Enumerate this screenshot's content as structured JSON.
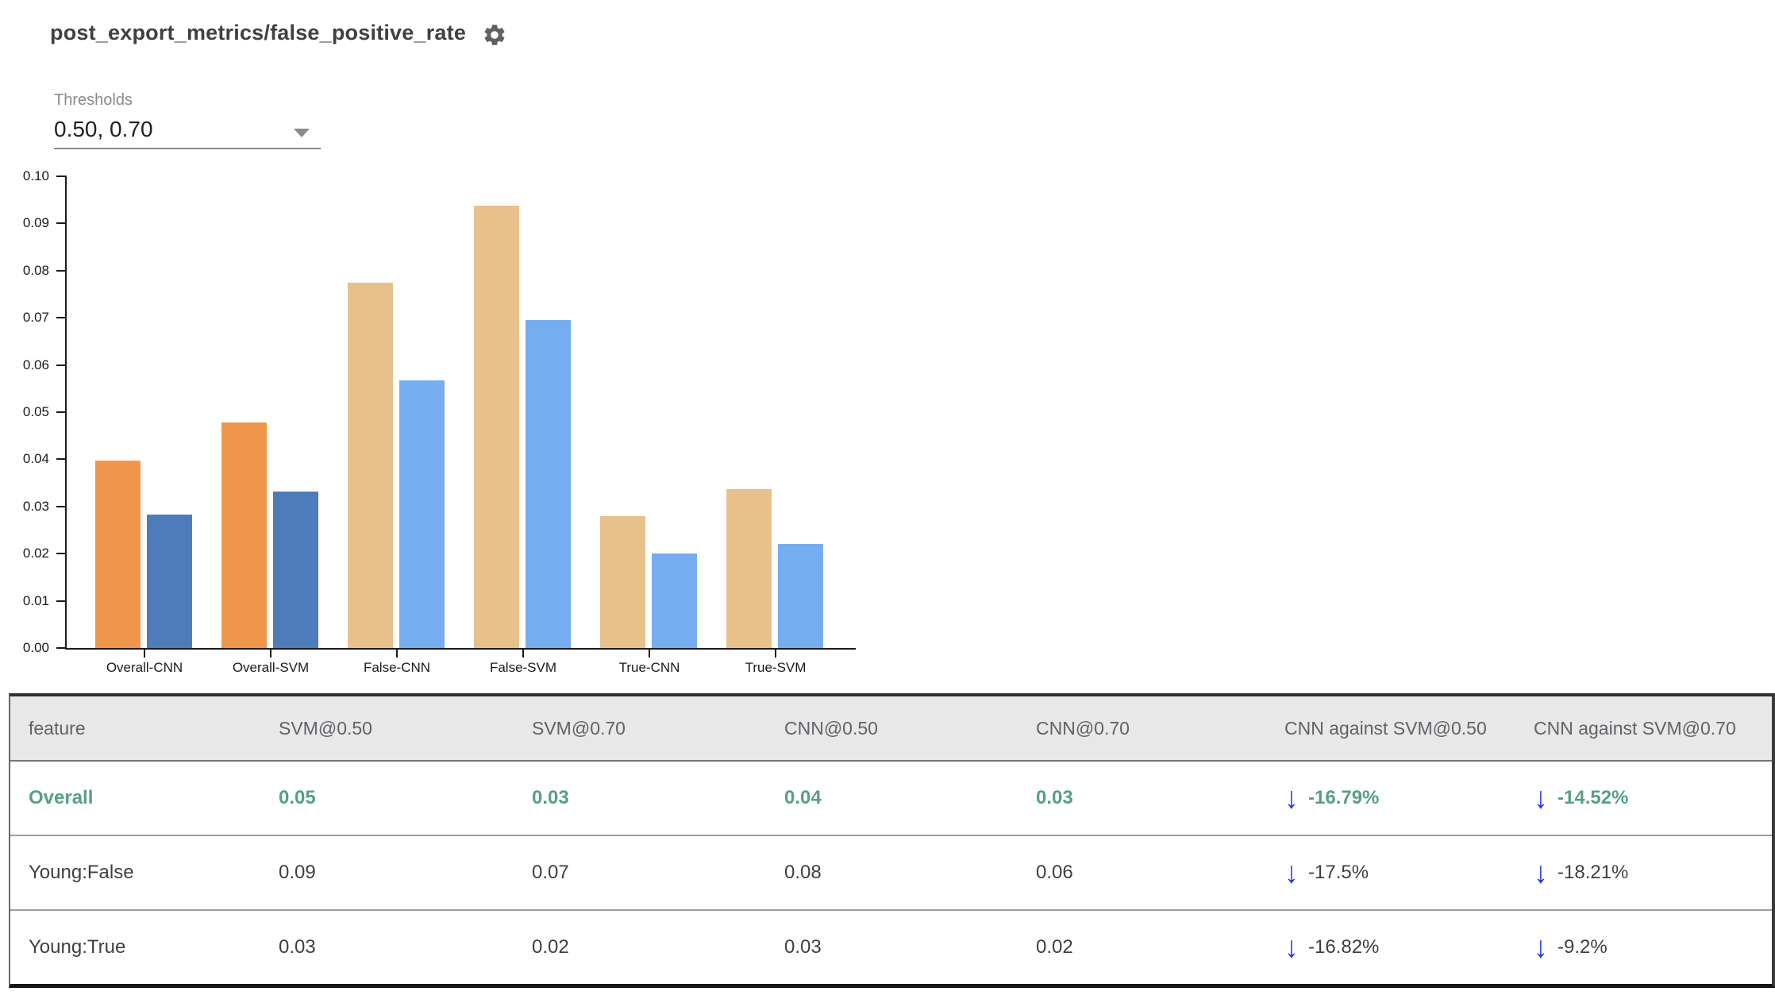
{
  "header": {
    "title": "post_export_metrics/false_positive_rate"
  },
  "icons": {
    "arrow_down": "↓",
    "gear": "settings-gear"
  },
  "thresholds": {
    "label": "Thresholds",
    "value": "0.50, 0.70"
  },
  "chart_data": {
    "type": "bar",
    "categories": [
      "Overall-CNN",
      "Overall-SVM",
      "False-CNN",
      "False-SVM",
      "True-CNN",
      "True-SVM"
    ],
    "series": [
      {
        "name": "threshold 0.50",
        "values": [
          0.0398,
          0.0478,
          0.0775,
          0.0937,
          0.028,
          0.0337
        ]
      },
      {
        "name": "threshold 0.70",
        "values": [
          0.0283,
          0.0332,
          0.0568,
          0.0695,
          0.0201,
          0.022
        ]
      }
    ],
    "category_colors": [
      [
        "#F0964A",
        "#4E7CBB"
      ],
      [
        "#F0964A",
        "#4E7CBB"
      ],
      [
        "#E7C08B",
        "#76ADF1"
      ],
      [
        "#E7C08B",
        "#76ADF1"
      ],
      [
        "#E7C08B",
        "#76ADF1"
      ],
      [
        "#E7C08B",
        "#76ADF1"
      ]
    ],
    "title": "post_export_metrics/false_positive_rate",
    "xlabel": "",
    "ylabel": "",
    "ylim": [
      0,
      0.1
    ],
    "ytick_step": 0.01,
    "grid": false,
    "legend": "none"
  },
  "table": {
    "columns": [
      "feature",
      "SVM@0.50",
      "SVM@0.70",
      "CNN@0.50",
      "CNN@0.70",
      "CNN against SVM@0.50",
      "CNN against SVM@0.70"
    ],
    "rows": [
      {
        "feature": "Overall",
        "values": [
          "0.05",
          "0.03",
          "0.04",
          "0.03"
        ],
        "deltas": [
          "-16.79%",
          "-14.52%"
        ],
        "highlight": true
      },
      {
        "feature": "Young:False",
        "values": [
          "0.09",
          "0.07",
          "0.08",
          "0.06"
        ],
        "deltas": [
          "-17.5%",
          "-18.21%"
        ],
        "highlight": false
      },
      {
        "feature": "Young:True",
        "values": [
          "0.03",
          "0.02",
          "0.03",
          "0.02"
        ],
        "deltas": [
          "-16.82%",
          "-9.2%"
        ],
        "highlight": false
      }
    ]
  },
  "colors": {
    "accent_green": "#55a084",
    "arrow_blue": "#2134e6",
    "bar_orange": "#F0964A",
    "bar_dark_blue": "#4E7CBB",
    "bar_tan": "#E7C08B",
    "bar_light_blue": "#76ADF1",
    "header_bg": "#e8e8e8",
    "title_gray": "#404040"
  }
}
